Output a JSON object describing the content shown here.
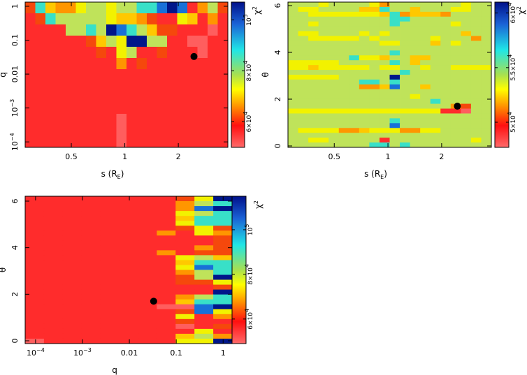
{
  "chart_data": [
    {
      "type": "heatmap",
      "xlabel": "s (R",
      "xlabel_sub": "E",
      "xlabel_end": ")",
      "ylabel": "q",
      "colorbar_label": "χ",
      "colorbar_label_sup": "2",
      "xscale": "log",
      "yscale": "log",
      "xlim": [
        0.275,
        3.8
      ],
      "ylim": [
        6.9e-05,
        1.33
      ],
      "clim": [
        50000,
        107000
      ],
      "xticks": [
        {
          "v": 0.5,
          "t": "0.5"
        },
        {
          "v": 1,
          "t": "1"
        },
        {
          "v": 2,
          "t": "2"
        }
      ],
      "yticks": [
        {
          "v": 1,
          "t": "1"
        },
        {
          "v": 0.1,
          "t": "0.1"
        },
        {
          "v": 0.01,
          "t": "0.01"
        },
        {
          "v": 0.001,
          "t": "10",
          "sup": "−3"
        },
        {
          "v": 0.0001,
          "t": "10",
          "sup": "−4"
        }
      ],
      "cticks": [
        {
          "v": 100000,
          "t": "10",
          "sup": "5"
        },
        {
          "v": 80000,
          "t": "8×10",
          "sup": "4"
        },
        {
          "v": 60000,
          "t": "6×10",
          "sup": "4"
        }
      ],
      "best_fit": {
        "x": 2.45,
        "y": 0.033
      },
      "grid_levels": [
        "27433566566778981362",
        "12766666544321154131",
        "11116676987642211101",
        "11111124659966110011",
        "11111112156112111011",
        "11111111131211111111",
        "11111111111111111111",
        "11111111111111111111",
        "11111111111111111111",
        "11111111111111111111",
        "11111111101111111111",
        "11111111101111111111",
        "11111111101111111111"
      ]
    },
    {
      "type": "heatmap",
      "xlabel": "s (R",
      "xlabel_sub": "E",
      "xlabel_end": ")",
      "ylabel": "θ",
      "colorbar_label": "χ",
      "colorbar_label_sup": "2",
      "xscale": "log",
      "yscale": "linear",
      "xlim": [
        0.275,
        3.8
      ],
      "ylim": [
        -0.06,
        6.15
      ],
      "clim": [
        47700,
        61000
      ],
      "xticks": [
        {
          "v": 0.5,
          "t": "0.5"
        },
        {
          "v": 1,
          "t": "1"
        },
        {
          "v": 2,
          "t": "2"
        }
      ],
      "yticks": [
        {
          "v": 0,
          "t": "0"
        },
        {
          "v": 2,
          "t": "2"
        },
        {
          "v": 4,
          "t": "4"
        },
        {
          "v": 6,
          "t": "6"
        }
      ],
      "cticks": [
        {
          "v": 60000,
          "t": "6×10",
          "sup": "4"
        },
        {
          "v": 55000,
          "t": "5.5×10",
          "sup": "4"
        },
        {
          "v": 50000,
          "t": "5×10",
          "sup": "4"
        }
      ],
      "best_fit": {
        "x": 2.45,
        "y": 1.7
      },
      "grid_levels": [
        "66656666536666666566",
        "65566664476646665566",
        "66555555547344436666",
        "66666666667766666666",
        "66566666667666665666",
        "66666666666666666666",
        "65566665656666666466",
        "66555556566666566636",
        "66666666655666465666",
        "66666666666666666666",
        "66666666667666666666",
        "66666675546644666666",
        "55555666667646666666",
        "55455555655665665555",
        "66666666666766666666",
        "55555666669666666666",
        "66666667767666666666",
        "66666663348664666666",
        "66666666666666666666",
        "66666666666656666666",
        "66666666666666766666",
        "66666666666666663266",
        "55555555555555511066",
        "66666666666666666666",
        "66666666667666666666",
        "66666666668666666666",
        "65555334555335566666",
        "66666666666666666666",
        "66556666616666666656",
        "66666666776766666666"
      ]
    },
    {
      "type": "heatmap",
      "xlabel": "q",
      "ylabel": "θ",
      "colorbar_label": "χ",
      "colorbar_label_sup": "2",
      "xscale": "log",
      "yscale": "linear",
      "xlim": [
        6e-05,
        1.55
      ],
      "ylim": [
        -0.12,
        6.21
      ],
      "clim": [
        49000,
        115000
      ],
      "xticks": [
        {
          "v": 0.0001,
          "t": "10",
          "sup": "−4"
        },
        {
          "v": 0.001,
          "t": "10",
          "sup": "−3"
        },
        {
          "v": 0.01,
          "t": "0.01"
        },
        {
          "v": 0.1,
          "t": "0.1"
        },
        {
          "v": 1,
          "t": "1"
        }
      ],
      "yticks": [
        {
          "v": 0,
          "t": "0"
        },
        {
          "v": 2,
          "t": "2"
        },
        {
          "v": 4,
          "t": "4"
        },
        {
          "v": 6,
          "t": "6"
        }
      ],
      "cticks": [
        {
          "v": 100000,
          "t": "10",
          "sup": "5"
        },
        {
          "v": 80000,
          "t": "8×10",
          "sup": "4"
        },
        {
          "v": 60000,
          "t": "6×10",
          "sup": "4"
        }
      ],
      "best_fit": {
        "x": 0.033,
        "y": 1.7
      },
      "grid_levels": [
        "11111111259",
        "11111111367",
        "11111111389",
        "11111111567",
        "11111111477",
        "11111111577",
        "11111111252",
        "11111113153",
        "11111111112",
        "11111111112",
        "11111111132",
        "11111113122",
        "11111111564",
        "11111111477",
        "11111111587",
        "11111111367",
        "11111111269",
        "11111111225",
        "11111111112",
        "11111111119",
        "11111111367",
        "11111111477",
        "11111110089",
        "11111111285",
        "11111111513",
        "11111111211",
        "11111111012",
        "11111111151",
        "11111111463",
        "01111111559"
      ]
    }
  ],
  "palette": [
    "#ff5e5e",
    "#ff2c2c",
    "#f5480c",
    "#ff9600",
    "#ffc800",
    "#f2f200",
    "#bfe35a",
    "#38e0c8",
    "#1870d8",
    "#00168a"
  ],
  "marker_color": "#000000"
}
